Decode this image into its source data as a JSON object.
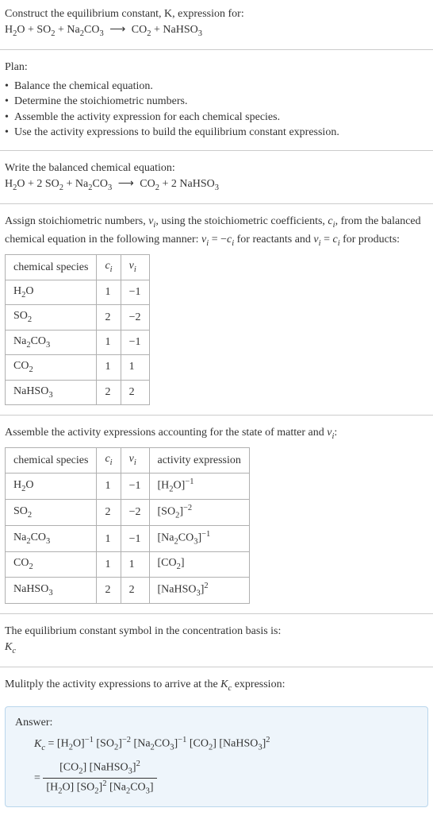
{
  "intro": {
    "line1": "Construct the equilibrium constant, K, expression for:",
    "equation_html": "H<sub>2</sub>O + SO<sub>2</sub> + Na<sub>2</sub>CO<sub>3</sub> <span class='arrow'>⟶</span> CO<sub>2</sub> + NaHSO<sub>3</sub>"
  },
  "plan": {
    "title": "Plan:",
    "items": [
      "Balance the chemical equation.",
      "Determine the stoichiometric numbers.",
      "Assemble the activity expression for each chemical species.",
      "Use the activity expressions to build the equilibrium constant expression."
    ]
  },
  "balanced": {
    "title": "Write the balanced chemical equation:",
    "equation_html": "H<sub>2</sub>O + 2 SO<sub>2</sub> + Na<sub>2</sub>CO<sub>3</sub> <span class='arrow'>⟶</span> CO<sub>2</sub> + 2 NaHSO<sub>3</sub>"
  },
  "stoich": {
    "text_html": "Assign stoichiometric numbers, <span class='italic'>ν<sub>i</sub></span>, using the stoichiometric coefficients, <span class='italic'>c<sub>i</sub></span>, from the balanced chemical equation in the following manner: <span class='italic'>ν<sub>i</sub></span> = −<span class='italic'>c<sub>i</sub></span> for reactants and <span class='italic'>ν<sub>i</sub></span> = <span class='italic'>c<sub>i</sub></span> for products:",
    "headers": [
      "chemical species",
      "c_i",
      "ν_i"
    ],
    "header_html": [
      "chemical species",
      "<span class='italic'>c<sub>i</sub></span>",
      "<span class='italic'>ν<sub>i</sub></span>"
    ],
    "rows": [
      {
        "species_html": "H<sub>2</sub>O",
        "c": "1",
        "v": "−1"
      },
      {
        "species_html": "SO<sub>2</sub>",
        "c": "2",
        "v": "−2"
      },
      {
        "species_html": "Na<sub>2</sub>CO<sub>3</sub>",
        "c": "1",
        "v": "−1"
      },
      {
        "species_html": "CO<sub>2</sub>",
        "c": "1",
        "v": "1"
      },
      {
        "species_html": "NaHSO<sub>3</sub>",
        "c": "2",
        "v": "2"
      }
    ]
  },
  "activity": {
    "text_html": "Assemble the activity expressions accounting for the state of matter and <span class='italic'>ν<sub>i</sub></span>:",
    "header_html": [
      "chemical species",
      "<span class='italic'>c<sub>i</sub></span>",
      "<span class='italic'>ν<sub>i</sub></span>",
      "activity expression"
    ],
    "rows": [
      {
        "species_html": "H<sub>2</sub>O",
        "c": "1",
        "v": "−1",
        "act_html": "[H<sub>2</sub>O]<sup>−1</sup>"
      },
      {
        "species_html": "SO<sub>2</sub>",
        "c": "2",
        "v": "−2",
        "act_html": "[SO<sub>2</sub>]<sup>−2</sup>"
      },
      {
        "species_html": "Na<sub>2</sub>CO<sub>3</sub>",
        "c": "1",
        "v": "−1",
        "act_html": "[Na<sub>2</sub>CO<sub>3</sub>]<sup>−1</sup>"
      },
      {
        "species_html": "CO<sub>2</sub>",
        "c": "1",
        "v": "1",
        "act_html": "[CO<sub>2</sub>]"
      },
      {
        "species_html": "NaHSO<sub>3</sub>",
        "c": "2",
        "v": "2",
        "act_html": "[NaHSO<sub>3</sub>]<sup>2</sup>"
      }
    ]
  },
  "symbol": {
    "line1": "The equilibrium constant symbol in the concentration basis is:",
    "line2_html": "<span class='italic'>K<sub>c</sub></span>"
  },
  "multiply": {
    "text_html": "Mulitply the activity expressions to arrive at the <span class='italic'>K<sub>c</sub></span> expression:"
  },
  "answer": {
    "label": "Answer:",
    "line1_html": "<span class='italic'>K<sub>c</sub></span> = [H<sub>2</sub>O]<sup>−1</sup> [SO<sub>2</sub>]<sup>−2</sup> [Na<sub>2</sub>CO<sub>3</sub>]<sup>−1</sup> [CO<sub>2</sub>] [NaHSO<sub>3</sub>]<sup>2</sup>",
    "frac_num_html": "[CO<sub>2</sub>] [NaHSO<sub>3</sub>]<sup>2</sup>",
    "frac_den_html": "[H<sub>2</sub>O] [SO<sub>2</sub>]<sup>2</sup> [Na<sub>2</sub>CO<sub>3</sub>]",
    "equals": "="
  },
  "style": {
    "bg": "#ffffff",
    "text_color": "#333333",
    "rule_color": "#cccccc",
    "table_border": "#b0b0b0",
    "answer_bg": "#eef5fb",
    "answer_border": "#b9d6ec",
    "font_family": "Georgia, 'Times New Roman', serif",
    "base_font_size_pt": 11
  }
}
